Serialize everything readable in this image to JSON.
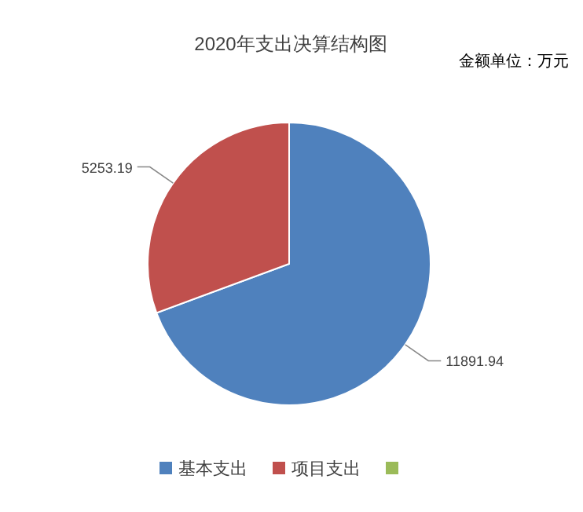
{
  "chart_data": {
    "type": "pie",
    "title": "2020年支出决算结构图",
    "annotations": [
      "金额单位：万元"
    ],
    "categories": [
      "基本支出",
      "项目支出",
      null
    ],
    "values": [
      11891.94,
      5253.19,
      0
    ],
    "colors": [
      "#4f81bd",
      "#c0504d",
      "#9bbb59"
    ],
    "value_labels": [
      "11891.94",
      "5253.19",
      null
    ],
    "legend": "bottom"
  }
}
